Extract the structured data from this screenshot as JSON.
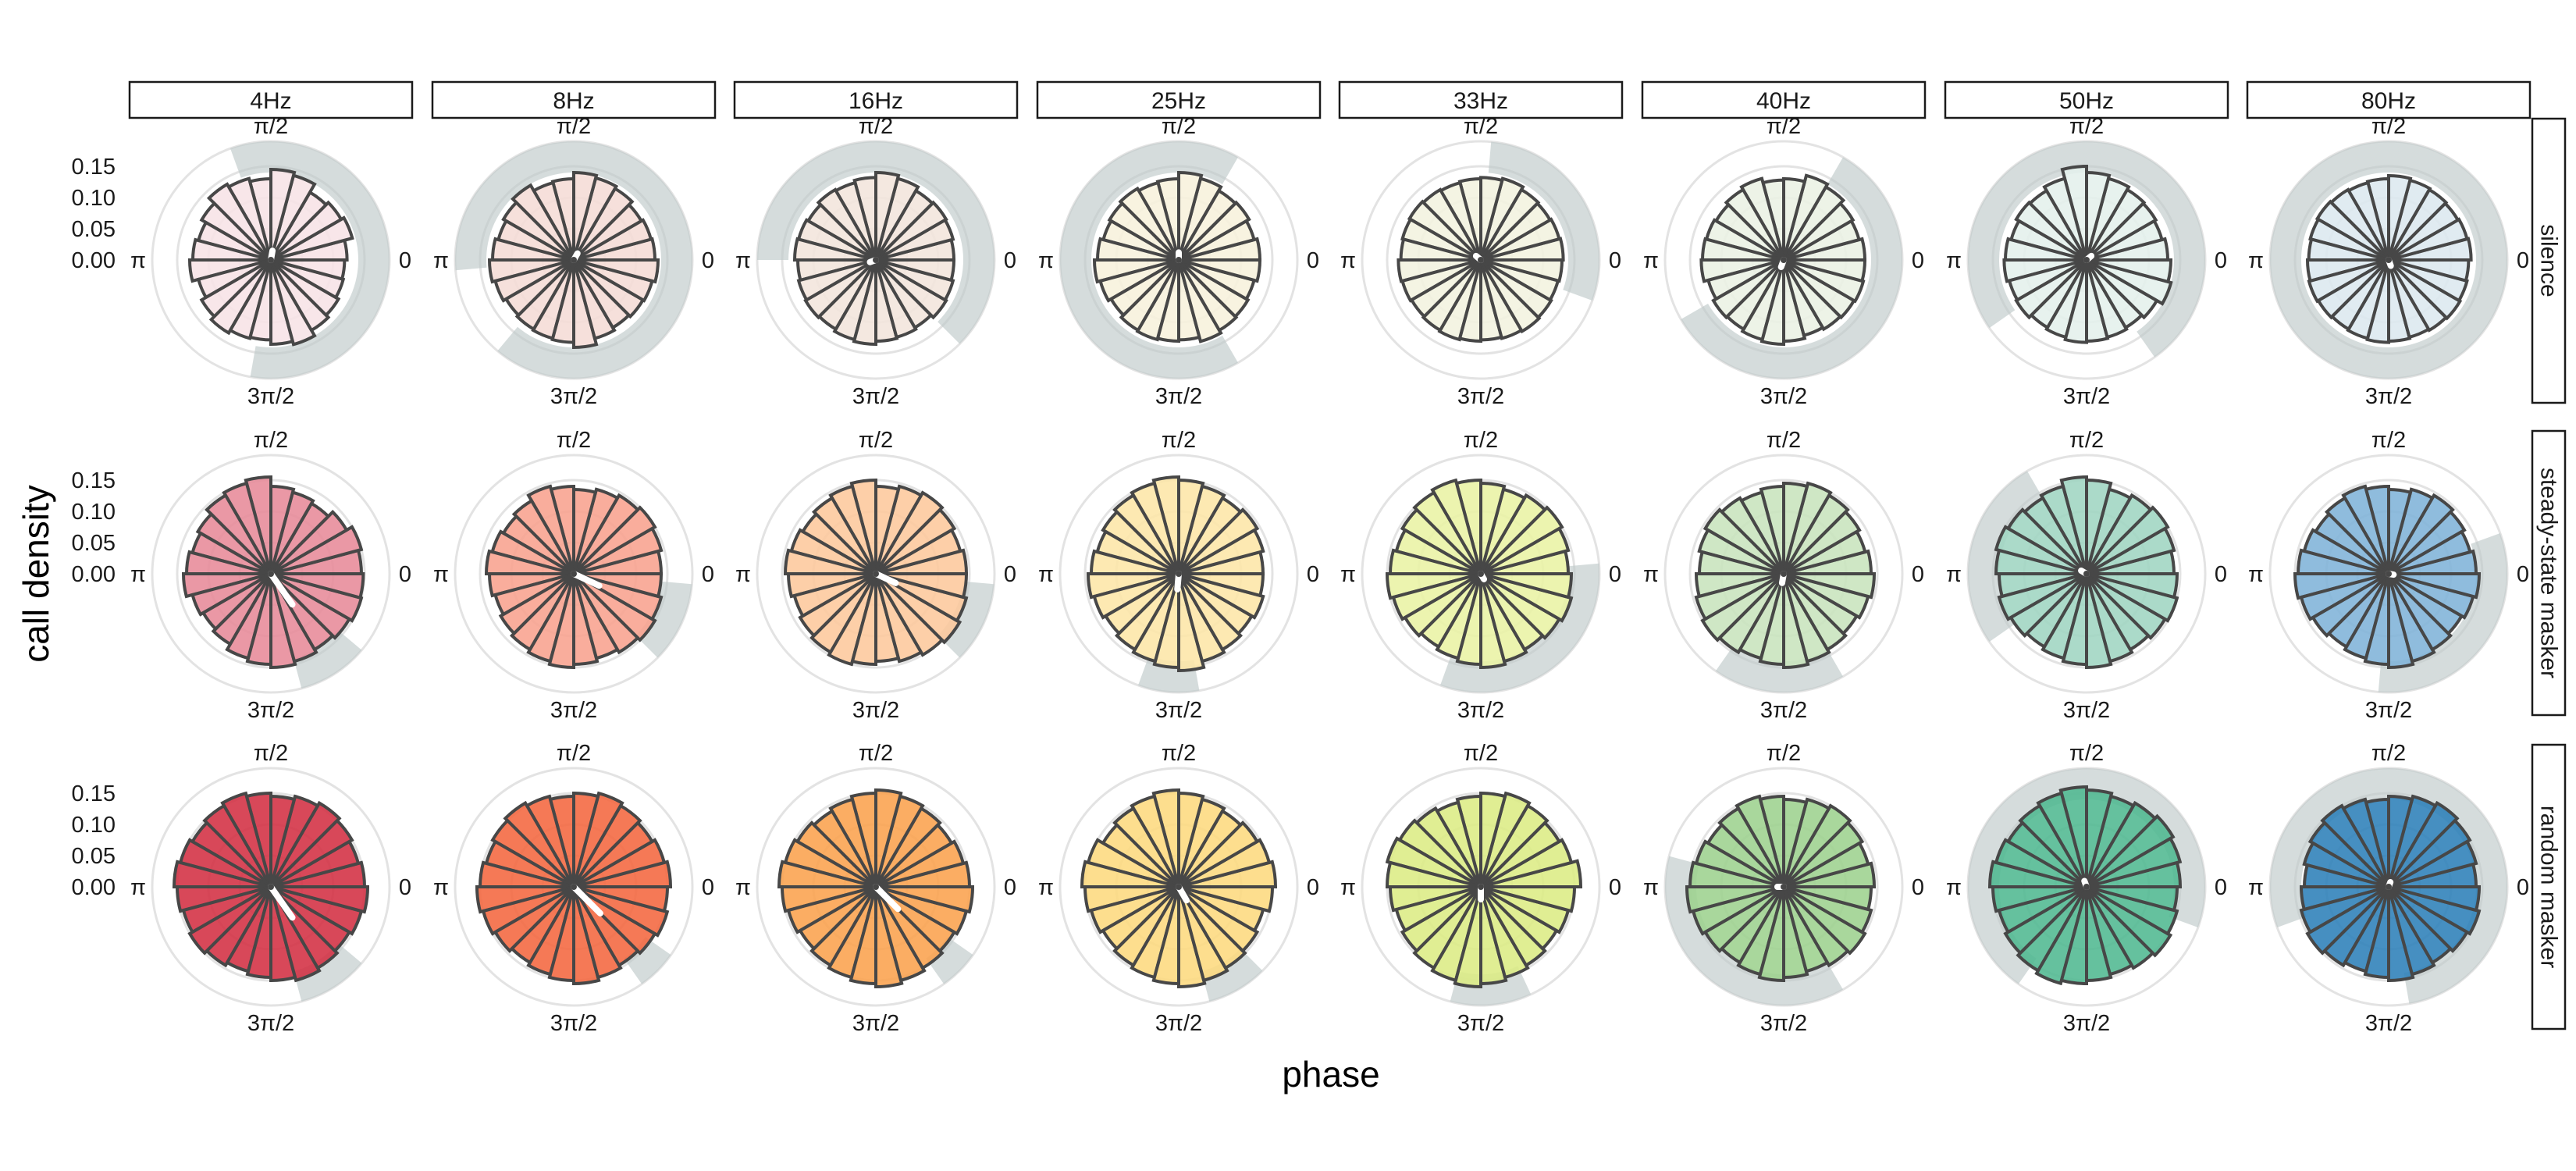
{
  "chart_data": {
    "type": "polar-bar",
    "xlabel": "phase",
    "ylabel": "call density",
    "yticks": [
      0.0,
      0.05,
      0.1,
      0.15
    ],
    "ytick_labels": [
      "0.00",
      "0.05",
      "0.10",
      "0.15"
    ],
    "rmax": 0.19,
    "angle_labels": [
      "0",
      "π/2",
      "π",
      "3π/2"
    ],
    "bins": 24,
    "columns": [
      "4Hz",
      "8Hz",
      "16Hz",
      "25Hz",
      "33Hz",
      "40Hz",
      "50Hz",
      "80Hz"
    ],
    "rows": [
      "silence",
      "steady-state masker",
      "random masker"
    ],
    "palette": {
      "silence": [
        "#f7e3e6",
        "#f5dcd6",
        "#f2e5dc",
        "#f7f1dc",
        "#f2f3df",
        "#eaf1e4",
        "#e4f0ec",
        "#dce8ef"
      ],
      "steady-state masker": [
        "#e78a99",
        "#f8a28e",
        "#fdc89c",
        "#fde6a7",
        "#e9f2a4",
        "#c8e4bd",
        "#9fd5c2",
        "#7fb3d8"
      ],
      "random masker": [
        "#d32f42",
        "#f4663f",
        "#fba24d",
        "#fdd97e",
        "#dcec84",
        "#9dd28e",
        "#50b891",
        "#2c7fb8"
      ]
    },
    "panels": [
      {
        "row": "silence",
        "column": "4Hz",
        "values": [
          0.122,
          0.135,
          0.13,
          0.125,
          0.14,
          0.145,
          0.13,
          0.135,
          0.14,
          0.128,
          0.12,
          0.125,
          0.13,
          0.12,
          0.128,
          0.135,
          0.13,
          0.128,
          0.135,
          0.14,
          0.13,
          0.125,
          0.12,
          0.118
        ],
        "mean_angle_deg": 80,
        "mean_length": 0.015,
        "ci_start_deg": -100,
        "ci_end_deg": 110
      },
      {
        "row": "silence",
        "column": "8Hz",
        "values": [
          0.13,
          0.128,
          0.125,
          0.132,
          0.136,
          0.14,
          0.13,
          0.128,
          0.138,
          0.13,
          0.125,
          0.13,
          0.135,
          0.13,
          0.125,
          0.128,
          0.13,
          0.132,
          0.14,
          0.13,
          0.125,
          0.128,
          0.13,
          0.135
        ],
        "mean_angle_deg": 60,
        "mean_length": 0.012,
        "ci_start_deg": -130,
        "ci_end_deg": 185
      },
      {
        "row": "silence",
        "column": "16Hz",
        "values": [
          0.125,
          0.128,
          0.13,
          0.128,
          0.135,
          0.14,
          0.132,
          0.128,
          0.13,
          0.125,
          0.128,
          0.13,
          0.125,
          0.128,
          0.13,
          0.128,
          0.132,
          0.135,
          0.13,
          0.128,
          0.125,
          0.13,
          0.128,
          0.125
        ],
        "mean_angle_deg": 200,
        "mean_length": 0.01,
        "ci_start_deg": -45,
        "ci_end_deg": 180
      },
      {
        "row": "silence",
        "column": "25Hz",
        "values": [
          0.13,
          0.125,
          0.13,
          0.128,
          0.135,
          0.14,
          0.13,
          0.128,
          0.132,
          0.128,
          0.125,
          0.13,
          0.135,
          0.13,
          0.125,
          0.13,
          0.132,
          0.13,
          0.128,
          0.135,
          0.13,
          0.128,
          0.125,
          0.13
        ],
        "mean_angle_deg": 90,
        "mean_length": 0.012,
        "ci_start_deg": 60,
        "ci_end_deg": 300
      },
      {
        "row": "silence",
        "column": "33Hz",
        "values": [
          0.132,
          0.13,
          0.128,
          0.13,
          0.135,
          0.132,
          0.13,
          0.128,
          0.13,
          0.132,
          0.13,
          0.128,
          0.132,
          0.13,
          0.128,
          0.13,
          0.132,
          0.13,
          0.128,
          0.13,
          0.132,
          0.13,
          0.128,
          0.13
        ],
        "mean_angle_deg": 140,
        "mean_length": 0.01,
        "ci_start_deg": -20,
        "ci_end_deg": 85
      },
      {
        "row": "silence",
        "column": "40Hz",
        "values": [
          0.13,
          0.125,
          0.128,
          0.135,
          0.14,
          0.13,
          0.128,
          0.135,
          0.13,
          0.125,
          0.128,
          0.13,
          0.132,
          0.125,
          0.13,
          0.128,
          0.132,
          0.135,
          0.13,
          0.125,
          0.128,
          0.13,
          0.132,
          0.13
        ],
        "mean_angle_deg": 250,
        "mean_length": 0.012,
        "ci_start_deg": -150,
        "ci_end_deg": 60
      },
      {
        "row": "silence",
        "column": "50Hz",
        "values": [
          0.13,
          0.125,
          0.128,
          0.13,
          0.135,
          0.14,
          0.15,
          0.135,
          0.128,
          0.13,
          0.125,
          0.13,
          0.132,
          0.128,
          0.13,
          0.125,
          0.128,
          0.132,
          0.13,
          0.128,
          0.125,
          0.13,
          0.14,
          0.135
        ],
        "mean_angle_deg": 40,
        "mean_length": 0.01,
        "ci_start_deg": -55,
        "ci_end_deg": 215
      },
      {
        "row": "silence",
        "column": "80Hz",
        "values": [
          0.132,
          0.13,
          0.128,
          0.13,
          0.132,
          0.135,
          0.13,
          0.128,
          0.13,
          0.132,
          0.13,
          0.128,
          0.13,
          0.132,
          0.13,
          0.128,
          0.13,
          0.132,
          0.13,
          0.128,
          0.13,
          0.132,
          0.13,
          0.128
        ],
        "mean_angle_deg": 290,
        "mean_length": 0.01,
        "ci_start_deg": 0,
        "ci_end_deg": 360
      },
      {
        "row": "steady-state masker",
        "column": "4Hz",
        "values": [
          0.145,
          0.15,
          0.14,
          0.13,
          0.135,
          0.14,
          0.155,
          0.15,
          0.145,
          0.135,
          0.13,
          0.135,
          0.14,
          0.13,
          0.125,
          0.13,
          0.14,
          0.145,
          0.15,
          0.145,
          0.14,
          0.145,
          0.15,
          0.148
        ],
        "mean_angle_deg": -55,
        "mean_length": 0.06,
        "ci_start_deg": -75,
        "ci_end_deg": -40
      },
      {
        "row": "steady-state masker",
        "column": "8Hz",
        "values": [
          0.14,
          0.145,
          0.15,
          0.145,
          0.14,
          0.135,
          0.14,
          0.145,
          0.135,
          0.13,
          0.135,
          0.14,
          0.135,
          0.13,
          0.135,
          0.14,
          0.145,
          0.15,
          0.145,
          0.14,
          0.145,
          0.15,
          0.145,
          0.14
        ],
        "mean_angle_deg": -25,
        "mean_length": 0.045,
        "ci_start_deg": -45,
        "ci_end_deg": -5
      },
      {
        "row": "steady-state masker",
        "column": "16Hz",
        "values": [
          0.145,
          0.14,
          0.145,
          0.15,
          0.145,
          0.14,
          0.15,
          0.145,
          0.14,
          0.135,
          0.14,
          0.145,
          0.14,
          0.135,
          0.14,
          0.145,
          0.15,
          0.145,
          0.14,
          0.145,
          0.15,
          0.155,
          0.15,
          0.145
        ],
        "mean_angle_deg": -25,
        "mean_length": 0.035,
        "ci_start_deg": -45,
        "ci_end_deg": -5
      },
      {
        "row": "steady-state masker",
        "column": "25Hz",
        "values": [
          0.135,
          0.14,
          0.145,
          0.14,
          0.145,
          0.15,
          0.155,
          0.15,
          0.145,
          0.14,
          0.135,
          0.14,
          0.145,
          0.14,
          0.135,
          0.14,
          0.145,
          0.15,
          0.155,
          0.145,
          0.14,
          0.135,
          0.14,
          0.135
        ],
        "mean_angle_deg": -95,
        "mean_length": 0.025,
        "ci_start_deg": -110,
        "ci_end_deg": -80
      },
      {
        "row": "steady-state masker",
        "column": "33Hz",
        "values": [
          0.14,
          0.145,
          0.15,
          0.145,
          0.14,
          0.145,
          0.15,
          0.155,
          0.15,
          0.145,
          0.14,
          0.145,
          0.15,
          0.145,
          0.14,
          0.135,
          0.14,
          0.145,
          0.15,
          0.145,
          0.14,
          0.145,
          0.15,
          0.145
        ],
        "mean_angle_deg": -60,
        "mean_length": 0.01,
        "ci_start_deg": -110,
        "ci_end_deg": 5
      },
      {
        "row": "steady-state masker",
        "column": "40Hz",
        "values": [
          0.14,
          0.135,
          0.14,
          0.145,
          0.15,
          0.145,
          0.14,
          0.135,
          0.14,
          0.145,
          0.14,
          0.135,
          0.14,
          0.145,
          0.15,
          0.145,
          0.14,
          0.145,
          0.15,
          0.145,
          0.14,
          0.135,
          0.14,
          0.145
        ],
        "mean_angle_deg": -100,
        "mean_length": 0.015,
        "ci_start_deg": -125,
        "ci_end_deg": -60
      },
      {
        "row": "steady-state masker",
        "column": "50Hz",
        "values": [
          0.14,
          0.145,
          0.15,
          0.145,
          0.14,
          0.15,
          0.155,
          0.145,
          0.14,
          0.145,
          0.15,
          0.145,
          0.14,
          0.145,
          0.14,
          0.135,
          0.14,
          0.145,
          0.15,
          0.145,
          0.14,
          0.145,
          0.15,
          0.145
        ],
        "mean_angle_deg": 150,
        "mean_length": 0.01,
        "ci_start_deg": 120,
        "ci_end_deg": 215
      },
      {
        "row": "steady-state masker",
        "column": "80Hz",
        "values": [
          0.14,
          0.135,
          0.14,
          0.145,
          0.14,
          0.135,
          0.14,
          0.145,
          0.14,
          0.135,
          0.14,
          0.145,
          0.15,
          0.145,
          0.14,
          0.135,
          0.14,
          0.145,
          0.15,
          0.145,
          0.14,
          0.135,
          0.14,
          0.145
        ],
        "mean_angle_deg": -10,
        "mean_length": 0.008,
        "ci_start_deg": -95,
        "ci_end_deg": 20
      },
      {
        "row": "random masker",
        "column": "4Hz",
        "values": [
          0.15,
          0.145,
          0.15,
          0.155,
          0.15,
          0.145,
          0.15,
          0.155,
          0.15,
          0.145,
          0.15,
          0.155,
          0.15,
          0.145,
          0.15,
          0.145,
          0.14,
          0.145,
          0.15,
          0.155,
          0.15,
          0.145,
          0.15,
          0.155
        ],
        "mean_angle_deg": -55,
        "mean_length": 0.06,
        "ci_start_deg": -75,
        "ci_end_deg": -40
      },
      {
        "row": "random masker",
        "column": "8Hz",
        "values": [
          0.155,
          0.15,
          0.145,
          0.15,
          0.155,
          0.15,
          0.145,
          0.15,
          0.155,
          0.15,
          0.145,
          0.15,
          0.155,
          0.15,
          0.145,
          0.14,
          0.145,
          0.15,
          0.155,
          0.15,
          0.145,
          0.15,
          0.155,
          0.15
        ],
        "mean_angle_deg": -45,
        "mean_length": 0.06,
        "ci_start_deg": -55,
        "ci_end_deg": -35
      },
      {
        "row": "random masker",
        "column": "16Hz",
        "values": [
          0.15,
          0.145,
          0.14,
          0.145,
          0.15,
          0.155,
          0.15,
          0.145,
          0.14,
          0.145,
          0.15,
          0.155,
          0.15,
          0.145,
          0.14,
          0.145,
          0.15,
          0.155,
          0.16,
          0.155,
          0.15,
          0.145,
          0.15,
          0.155
        ],
        "mean_angle_deg": -45,
        "mean_length": 0.05,
        "ci_start_deg": -55,
        "ci_end_deg": -35
      },
      {
        "row": "random masker",
        "column": "25Hz",
        "values": [
          0.155,
          0.15,
          0.145,
          0.14,
          0.145,
          0.15,
          0.155,
          0.15,
          0.145,
          0.14,
          0.15,
          0.155,
          0.15,
          0.145,
          0.14,
          0.145,
          0.15,
          0.155,
          0.16,
          0.155,
          0.15,
          0.145,
          0.14,
          0.15
        ],
        "mean_angle_deg": -60,
        "mean_length": 0.025,
        "ci_start_deg": -75,
        "ci_end_deg": -45
      },
      {
        "row": "random masker",
        "column": "33Hz",
        "values": [
          0.16,
          0.15,
          0.145,
          0.15,
          0.155,
          0.15,
          0.145,
          0.14,
          0.145,
          0.15,
          0.155,
          0.15,
          0.145,
          0.14,
          0.145,
          0.15,
          0.155,
          0.16,
          0.155,
          0.15,
          0.145,
          0.14,
          0.145,
          0.15
        ],
        "mean_angle_deg": -90,
        "mean_length": 0.02,
        "ci_start_deg": -105,
        "ci_end_deg": -65
      },
      {
        "row": "random masker",
        "column": "40Hz",
        "values": [
          0.145,
          0.14,
          0.145,
          0.15,
          0.145,
          0.14,
          0.145,
          0.15,
          0.145,
          0.14,
          0.145,
          0.15,
          0.155,
          0.15,
          0.145,
          0.14,
          0.145,
          0.15,
          0.145,
          0.14,
          0.145,
          0.15,
          0.145,
          0.14
        ],
        "mean_angle_deg": 180,
        "mean_length": 0.01,
        "ci_start_deg": 165,
        "ci_end_deg": 300
      },
      {
        "row": "random masker",
        "column": "50Hz",
        "values": [
          0.15,
          0.155,
          0.16,
          0.155,
          0.15,
          0.155,
          0.16,
          0.155,
          0.15,
          0.145,
          0.15,
          0.155,
          0.15,
          0.145,
          0.15,
          0.155,
          0.16,
          0.155,
          0.15,
          0.145,
          0.15,
          0.155,
          0.15,
          0.145
        ],
        "mean_angle_deg": 110,
        "mean_length": 0.01,
        "ci_start_deg": -20,
        "ci_end_deg": 235
      },
      {
        "row": "random masker",
        "column": "80Hz",
        "values": [
          0.14,
          0.145,
          0.15,
          0.155,
          0.15,
          0.145,
          0.14,
          0.145,
          0.15,
          0.145,
          0.14,
          0.135,
          0.14,
          0.145,
          0.15,
          0.145,
          0.14,
          0.145,
          0.15,
          0.145,
          0.14,
          0.145,
          0.15,
          0.145
        ],
        "mean_angle_deg": 70,
        "mean_length": 0.008,
        "ci_start_deg": -80,
        "ci_end_deg": 200
      }
    ]
  }
}
